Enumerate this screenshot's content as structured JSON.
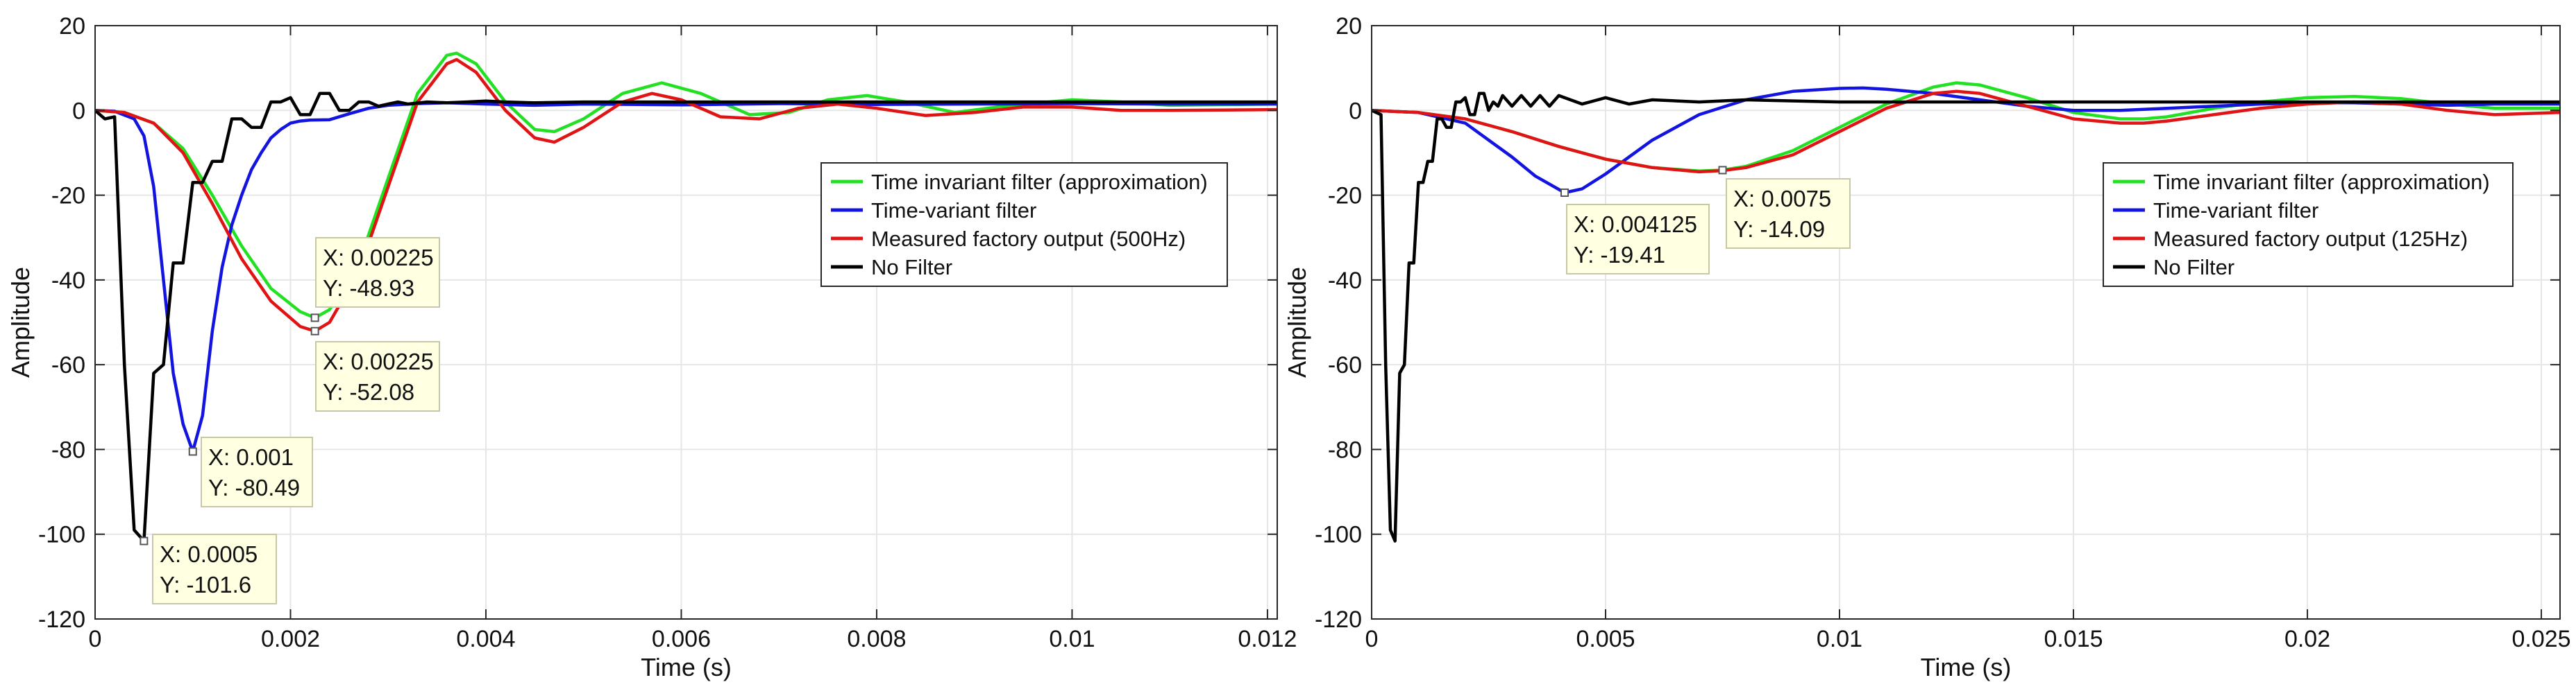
{
  "chart_data": [
    {
      "type": "line",
      "xlabel": "Time (s)",
      "ylabel": "Amplitude",
      "xlim": [
        0,
        0.0121
      ],
      "ylim": [
        -120,
        20
      ],
      "xticks": [
        0,
        0.002,
        0.004,
        0.006,
        0.008,
        0.01,
        0.012
      ],
      "xtick_labels": [
        "0",
        "0.002",
        "0.004",
        "0.006",
        "0.008",
        "0.01",
        "0.012"
      ],
      "yticks": [
        -120,
        -100,
        -80,
        -60,
        -40,
        -20,
        0,
        20
      ],
      "ytick_labels": [
        "-120",
        "-100",
        "-80",
        "-60",
        "-40",
        "-20",
        "0",
        "20"
      ],
      "grid": true,
      "legend_position": "center-right",
      "series": [
        {
          "name": "Time invariant filter (approximation)",
          "color": "#22e022",
          "x": [
            0,
            0.0003,
            0.0006,
            0.0009,
            0.0012,
            0.0015,
            0.0018,
            0.0021,
            0.00225,
            0.0024,
            0.0027,
            0.003,
            0.0033,
            0.0036,
            0.0037,
            0.0039,
            0.0042,
            0.0045,
            0.0047,
            0.005,
            0.0054,
            0.0058,
            0.0062,
            0.0067,
            0.0071,
            0.0075,
            0.0079,
            0.0083,
            0.0088,
            0.0093,
            0.01,
            0.0105,
            0.011,
            0.0121
          ],
          "y": [
            0,
            -0.5,
            -3,
            -9,
            -20,
            -32,
            -42,
            -47.5,
            -48.93,
            -47,
            -36,
            -16,
            4,
            13,
            13.5,
            11,
            2,
            -4.5,
            -5,
            -2,
            4,
            6.5,
            4,
            -1,
            -0.5,
            2.5,
            3.5,
            2,
            -0.5,
            1,
            2.5,
            2,
            1.2,
            1.5
          ]
        },
        {
          "name": "Time-variant filter",
          "color": "#1414e0",
          "x": [
            0,
            0.0002,
            0.0004,
            0.0005,
            0.0006,
            0.0007,
            0.0008,
            0.0009,
            0.001,
            0.0011,
            0.0012,
            0.0013,
            0.0014,
            0.0015,
            0.0016,
            0.0017,
            0.0018,
            0.0019,
            0.002,
            0.0021,
            0.0022,
            0.0024,
            0.0026,
            0.0028,
            0.003,
            0.0033,
            0.0036,
            0.004,
            0.0045,
            0.005,
            0.006,
            0.007,
            0.008,
            0.009,
            0.01,
            0.011,
            0.0121
          ],
          "y": [
            0,
            -0.2,
            -2,
            -6,
            -18,
            -40,
            -62,
            -74,
            -80.49,
            -72,
            -52,
            -37,
            -27,
            -20,
            -14,
            -10,
            -6.5,
            -4.5,
            -3,
            -2.5,
            -2.3,
            -2.2,
            -0.8,
            0.5,
            1.2,
            1.6,
            1.8,
            1.5,
            1.2,
            1.5,
            1.3,
            1.6,
            1.4,
            1.5,
            1.6,
            1.5,
            1.5
          ]
        },
        {
          "name": "Measured factory output (500Hz)",
          "color": "#e01414",
          "x": [
            0,
            0.0003,
            0.0006,
            0.0009,
            0.0012,
            0.0015,
            0.0018,
            0.0021,
            0.00225,
            0.0024,
            0.0027,
            0.003,
            0.0033,
            0.0036,
            0.0037,
            0.0039,
            0.0042,
            0.0045,
            0.0047,
            0.005,
            0.0054,
            0.0057,
            0.006,
            0.0064,
            0.0068,
            0.0072,
            0.0076,
            0.008,
            0.0085,
            0.009,
            0.0095,
            0.01,
            0.0105,
            0.011,
            0.0121
          ],
          "y": [
            0,
            -0.5,
            -3,
            -10,
            -22,
            -35,
            -45,
            -51,
            -52.08,
            -50,
            -38,
            -18,
            2,
            11,
            12,
            9,
            0,
            -6.5,
            -7.5,
            -4,
            2,
            4,
            2.5,
            -1.5,
            -2,
            0.5,
            1.5,
            0.5,
            -1.2,
            -0.5,
            0.8,
            0.8,
            0,
            0,
            0.2
          ]
        },
        {
          "name": "No Filter",
          "color": "#000000",
          "x": [
            0,
            0.0001,
            0.0002,
            0.0003,
            0.0004,
            0.0005,
            0.0006,
            0.0007,
            0.0008,
            0.0009,
            0.001,
            0.0011,
            0.0012,
            0.0013,
            0.0014,
            0.0015,
            0.0016,
            0.0017,
            0.0018,
            0.0019,
            0.002,
            0.0021,
            0.0022,
            0.0023,
            0.0024,
            0.0025,
            0.0026,
            0.0027,
            0.0028,
            0.0029,
            0.003,
            0.0031,
            0.0032,
            0.0034,
            0.0036,
            0.0038,
            0.004,
            0.0042,
            0.0045,
            0.005,
            0.0055,
            0.006,
            0.007,
            0.008,
            0.009,
            0.01,
            0.011,
            0.0121
          ],
          "y": [
            0,
            -2,
            -1.5,
            -60,
            -99,
            -101.6,
            -62,
            -60,
            -36,
            -36,
            -17,
            -17,
            -12,
            -12,
            -2,
            -2,
            -4,
            -4,
            2,
            2,
            3,
            -1,
            -1,
            4,
            4,
            0,
            0,
            2,
            2,
            1,
            1.5,
            2,
            1.5,
            2,
            1.8,
            2,
            2.2,
            2,
            1.8,
            2,
            2,
            2,
            2,
            2,
            2,
            2,
            2,
            2
          ]
        }
      ],
      "datatips": [
        {
          "x": 0.00225,
          "y": -48.93,
          "x_label": "X: 0.00225",
          "y_label": "Y: -48.93",
          "series": "Time invariant filter (approximation)",
          "placement": "right"
        },
        {
          "x": 0.00225,
          "y": -52.08,
          "x_label": "X: 0.00225",
          "y_label": "Y: -52.08",
          "series": "Measured factory output (500Hz)",
          "placement": "below-right"
        },
        {
          "x": 0.001,
          "y": -80.49,
          "x_label": "X: 0.001",
          "y_label": "Y: -80.49",
          "series": "Time-variant filter",
          "placement": "below-right"
        },
        {
          "x": 0.0005,
          "y": -101.6,
          "x_label": "X: 0.0005",
          "y_label": "Y: -101.6",
          "series": "No Filter",
          "placement": "below-right"
        }
      ]
    },
    {
      "type": "line",
      "xlabel": "Time (s)",
      "ylabel": "Amplitude",
      "xlim": [
        0,
        0.0254
      ],
      "ylim": [
        -120,
        20
      ],
      "xticks": [
        0,
        0.005,
        0.01,
        0.015,
        0.02,
        0.025
      ],
      "xtick_labels": [
        "0",
        "0.005",
        "0.01",
        "0.015",
        "0.02",
        "0.025"
      ],
      "yticks": [
        -120,
        -100,
        -80,
        -60,
        -40,
        -20,
        0,
        20
      ],
      "ytick_labels": [
        "-120",
        "-100",
        "-80",
        "-60",
        "-40",
        "-20",
        "0",
        "20"
      ],
      "grid": true,
      "legend_position": "center-right",
      "series": [
        {
          "name": "Time invariant filter (approximation)",
          "color": "#22e022",
          "x": [
            0,
            0.001,
            0.002,
            0.003,
            0.004,
            0.005,
            0.006,
            0.007,
            0.0075,
            0.008,
            0.009,
            0.01,
            0.011,
            0.012,
            0.0125,
            0.013,
            0.014,
            0.015,
            0.016,
            0.0165,
            0.017,
            0.018,
            0.019,
            0.02,
            0.021,
            0.022,
            0.023,
            0.024,
            0.0254
          ],
          "y": [
            0,
            -0.5,
            -2,
            -5,
            -8.5,
            -11.5,
            -13.5,
            -14.3,
            -14.09,
            -13.2,
            -9.5,
            -4,
            1.5,
            5.5,
            6.5,
            6,
            3,
            -0.5,
            -2,
            -2,
            -1.5,
            0.5,
            2,
            3,
            3.3,
            2.8,
            1.5,
            0.5,
            0.5
          ]
        },
        {
          "name": "Time-variant filter",
          "color": "#1414e0",
          "x": [
            0,
            0.001,
            0.002,
            0.003,
            0.0035,
            0.004125,
            0.0045,
            0.005,
            0.006,
            0.007,
            0.008,
            0.009,
            0.01,
            0.0105,
            0.011,
            0.012,
            0.013,
            0.014,
            0.015,
            0.016,
            0.017,
            0.018,
            0.019,
            0.02,
            0.021,
            0.022,
            0.023,
            0.024,
            0.0254
          ],
          "y": [
            0,
            -0.5,
            -3,
            -11,
            -15.5,
            -19.41,
            -18.5,
            -15,
            -7,
            -1,
            2.5,
            4.5,
            5.2,
            5.3,
            5,
            4,
            2.5,
            1,
            0,
            0,
            0.5,
            1,
            1.5,
            1.8,
            1.8,
            1.5,
            1.2,
            1.5,
            1.5
          ]
        },
        {
          "name": "Measured factory output (125Hz)",
          "color": "#e01414",
          "x": [
            0,
            0.001,
            0.002,
            0.003,
            0.004,
            0.005,
            0.006,
            0.007,
            0.0075,
            0.008,
            0.009,
            0.01,
            0.011,
            0.012,
            0.0125,
            0.013,
            0.014,
            0.015,
            0.016,
            0.0165,
            0.017,
            0.018,
            0.019,
            0.02,
            0.021,
            0.022,
            0.023,
            0.024,
            0.0254
          ],
          "y": [
            0,
            -0.5,
            -2,
            -5,
            -8.5,
            -11.5,
            -13.5,
            -14.5,
            -14.2,
            -13.5,
            -10.5,
            -5,
            0.5,
            4,
            4.5,
            4,
            1,
            -2,
            -3,
            -3,
            -2.5,
            -1,
            0.5,
            1.5,
            2,
            1.5,
            0,
            -1,
            -0.5
          ]
        },
        {
          "name": "No Filter",
          "color": "#000000",
          "x": [
            0,
            0.0002,
            0.0003,
            0.0004,
            0.0005,
            0.0006,
            0.0007,
            0.0008,
            0.0009,
            0.001,
            0.0011,
            0.0012,
            0.0013,
            0.0014,
            0.0015,
            0.0016,
            0.0017,
            0.0018,
            0.0019,
            0.002,
            0.0021,
            0.0022,
            0.0023,
            0.0024,
            0.0025,
            0.0026,
            0.0027,
            0.0028,
            0.003,
            0.0032,
            0.0034,
            0.0036,
            0.0038,
            0.004,
            0.0045,
            0.005,
            0.0055,
            0.006,
            0.007,
            0.008,
            0.01,
            0.012,
            0.014,
            0.016,
            0.018,
            0.02,
            0.022,
            0.024,
            0.0254
          ],
          "y": [
            0,
            -1,
            -60,
            -99,
            -101.6,
            -62,
            -60,
            -36,
            -36,
            -17,
            -17,
            -12,
            -12,
            -2,
            -2,
            -4,
            -4,
            2,
            2,
            3,
            -1,
            -1,
            4,
            4,
            0,
            2,
            1,
            3.5,
            1,
            3.5,
            1,
            3.5,
            1,
            3.5,
            1.5,
            3,
            1.5,
            2.5,
            2,
            2.5,
            2,
            2,
            2,
            2,
            2,
            2,
            2,
            2,
            2
          ]
        }
      ],
      "datatips": [
        {
          "x": 0.004125,
          "y": -19.41,
          "x_label": "X: 0.004125",
          "y_label": "Y: -19.41",
          "series": "Time-variant filter",
          "placement": "below-right"
        },
        {
          "x": 0.0075,
          "y": -14.09,
          "x_label": "X: 0.0075",
          "y_label": "Y: -14.09",
          "series": "Time invariant filter (approximation)",
          "placement": "below-right"
        }
      ]
    }
  ]
}
